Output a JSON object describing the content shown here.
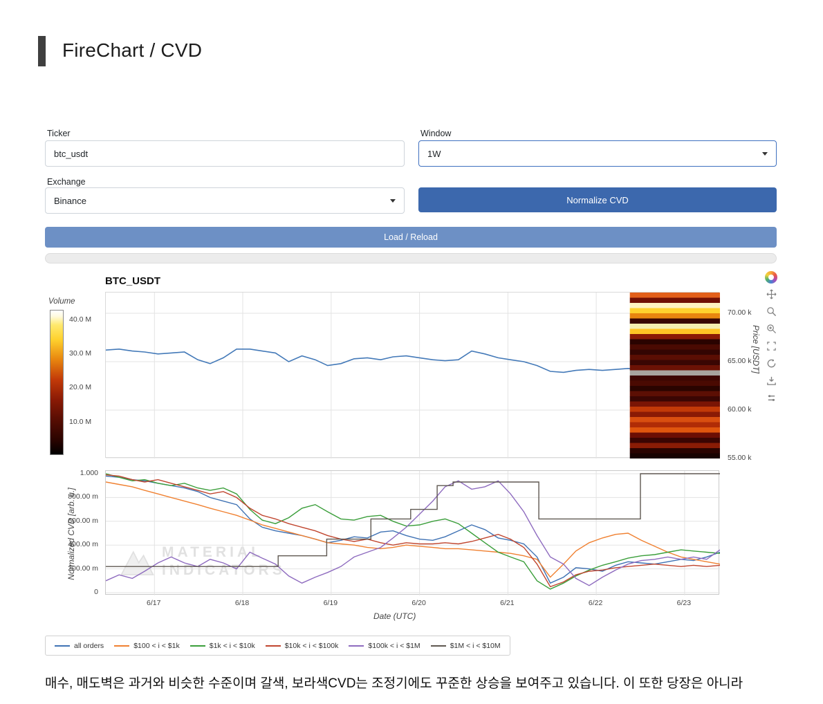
{
  "header": {
    "title": "FireChart / CVD"
  },
  "form": {
    "ticker_label": "Ticker",
    "ticker_value": "btc_usdt",
    "window_label": "Window",
    "window_value": "1W",
    "exchange_label": "Exchange",
    "exchange_value": "Binance",
    "normalize_button": "Normalize CVD",
    "load_button": "Load / Reload"
  },
  "chart": {
    "title": "BTC_USDT",
    "volume_label": "Volume",
    "volume_ticks": [
      {
        "label": "40.0 M",
        "pos": 6
      },
      {
        "label": "30.0 M",
        "pos": 29.5
      },
      {
        "label": "20.0 M",
        "pos": 53
      },
      {
        "label": "10.0 M",
        "pos": 76.5
      }
    ],
    "price_ylabel": "Price [USDT]",
    "price_ticks": [
      {
        "label": "70.00 k",
        "value": 70
      },
      {
        "label": "65.00 k",
        "value": 65
      },
      {
        "label": "60.00 k",
        "value": 60
      },
      {
        "label": "55.00 k",
        "value": 55
      }
    ],
    "cvd_ylabel": "Normalized CVD [arb. u.]",
    "cvd_ticks": [
      {
        "label": "1.000",
        "value": 1.0
      },
      {
        "label": "800.00 m",
        "value": 0.8
      },
      {
        "label": "600.00 m",
        "value": 0.6
      },
      {
        "label": "400.00 m",
        "value": 0.4
      },
      {
        "label": "200.00 m",
        "value": 0.2
      },
      {
        "label": "0",
        "value": 0
      }
    ],
    "date_label": "Date (UTC)",
    "date_ticks": [
      {
        "label": "6/17",
        "value": 17
      },
      {
        "label": "6/18",
        "value": 18
      },
      {
        "label": "6/19",
        "value": 19
      },
      {
        "label": "6/20",
        "value": 20
      },
      {
        "label": "6/21",
        "value": 21
      },
      {
        "label": "6/22",
        "value": 22
      },
      {
        "label": "6/23",
        "value": 23
      }
    ],
    "watermark_line1": "MATERIAL",
    "watermark_line2": "INDICATORS"
  },
  "modebar": {
    "icons": [
      {
        "name": "plotly-logo"
      },
      {
        "name": "pan-icon"
      },
      {
        "name": "zoom-icon"
      },
      {
        "name": "zoom-in-icon"
      },
      {
        "name": "autoscale-icon"
      },
      {
        "name": "reset-axes-icon"
      },
      {
        "name": "download-icon"
      },
      {
        "name": "hover-mode-icon"
      }
    ]
  },
  "chart_data": {
    "price_chart": {
      "type": "line",
      "title": "BTC_USDT",
      "x_domain": [
        16.45,
        23.4
      ],
      "y_domain_price_thousands": [
        55,
        72.14
      ],
      "x_gridlines": [
        17,
        18,
        19,
        20,
        21,
        22,
        23
      ],
      "y_gridlines": [
        55,
        60,
        65,
        70
      ],
      "price_series": {
        "name": "BTC_USDT price",
        "color": "#4379b8",
        "x": [
          16.45,
          16.6,
          16.75,
          16.89,
          17.04,
          17.19,
          17.34,
          17.49,
          17.63,
          17.78,
          17.93,
          18.08,
          18.22,
          18.37,
          18.52,
          18.67,
          18.82,
          18.96,
          19.11,
          19.26,
          19.41,
          19.56,
          19.7,
          19.85,
          20.0,
          20.15,
          20.29,
          20.44,
          20.59,
          20.74,
          20.89,
          21.03,
          21.18,
          21.33,
          21.48,
          21.63,
          21.77,
          21.92,
          22.07,
          22.22,
          22.36,
          22.51,
          22.66,
          22.81,
          22.96,
          23.1,
          23.25,
          23.4
        ],
        "y": [
          66.2,
          66.3,
          66.1,
          66.0,
          65.8,
          65.9,
          66.0,
          65.2,
          64.8,
          65.4,
          66.3,
          66.3,
          66.1,
          65.9,
          65.0,
          65.6,
          65.2,
          64.6,
          64.8,
          65.3,
          65.4,
          65.2,
          65.5,
          65.6,
          65.4,
          65.2,
          65.1,
          65.2,
          66.1,
          65.8,
          65.4,
          65.2,
          65.0,
          64.6,
          64.0,
          63.9,
          64.1,
          64.2,
          64.1,
          64.2,
          64.3,
          64.2,
          64.3,
          64.25,
          64.3,
          64.35,
          64.3,
          64.4
        ]
      },
      "heatmap": {
        "x_start": 22.38,
        "x_end": 23.4,
        "row_colors": [
          "#e2601a",
          "#701004",
          "#fff3c0",
          "#ffd22e",
          "#e8860f",
          "#380602",
          "#f4eeb0",
          "#ffc425",
          "#8a1a05",
          "#2a0300",
          "#4a0a02",
          "#330502",
          "#5a0e03",
          "#3a0603",
          "#6b1205",
          "#a8a5a0",
          "#3c0703",
          "#4a0a02",
          "#2a0400",
          "#5c0f04",
          "#3a0603",
          "#7a1505",
          "#c23a08",
          "#8a1a05",
          "#d94f10",
          "#b02c06",
          "#e0560e",
          "#6b0e04",
          "#3a0502",
          "#8a1c05",
          "#2a0300",
          "#180200"
        ]
      }
    },
    "cvd_chart": {
      "type": "line",
      "x_domain": [
        16.45,
        23.4
      ],
      "y_domain": [
        0,
        1.0
      ],
      "x": [
        16.45,
        16.6,
        16.75,
        16.89,
        17.04,
        17.19,
        17.34,
        17.49,
        17.63,
        17.78,
        17.93,
        18.08,
        18.22,
        18.37,
        18.52,
        18.67,
        18.82,
        18.96,
        19.11,
        19.26,
        19.41,
        19.56,
        19.7,
        19.85,
        20.0,
        20.15,
        20.29,
        20.44,
        20.59,
        20.74,
        20.89,
        21.03,
        21.18,
        21.33,
        21.48,
        21.63,
        21.77,
        21.92,
        22.07,
        22.22,
        22.36,
        22.51,
        22.66,
        22.81,
        22.96,
        23.1,
        23.25,
        23.4
      ],
      "series": [
        {
          "name": "all orders",
          "color": "#3f72b4",
          "y": [
            0.98,
            0.97,
            0.95,
            0.94,
            0.92,
            0.9,
            0.88,
            0.85,
            0.8,
            0.77,
            0.74,
            0.62,
            0.55,
            0.52,
            0.5,
            0.48,
            0.45,
            0.42,
            0.44,
            0.47,
            0.46,
            0.51,
            0.52,
            0.48,
            0.45,
            0.44,
            0.47,
            0.52,
            0.57,
            0.53,
            0.46,
            0.44,
            0.41,
            0.3,
            0.08,
            0.13,
            0.21,
            0.2,
            0.18,
            0.23,
            0.26,
            0.25,
            0.24,
            0.26,
            0.28,
            0.27,
            0.3,
            0.34
          ]
        },
        {
          "name": "$100 < i < $1k",
          "color": "#f08030",
          "y": [
            0.93,
            0.91,
            0.89,
            0.86,
            0.83,
            0.8,
            0.77,
            0.74,
            0.71,
            0.68,
            0.65,
            0.61,
            0.57,
            0.54,
            0.51,
            0.48,
            0.45,
            0.42,
            0.41,
            0.4,
            0.38,
            0.37,
            0.38,
            0.4,
            0.39,
            0.38,
            0.37,
            0.37,
            0.36,
            0.35,
            0.34,
            0.33,
            0.31,
            0.28,
            0.13,
            0.24,
            0.35,
            0.42,
            0.46,
            0.49,
            0.5,
            0.44,
            0.39,
            0.34,
            0.3,
            0.28,
            0.26,
            0.24
          ]
        },
        {
          "name": "$1k < i < $10k",
          "color": "#3a9e3a",
          "y": [
            1.0,
            0.97,
            0.94,
            0.95,
            0.92,
            0.9,
            0.92,
            0.88,
            0.86,
            0.88,
            0.83,
            0.7,
            0.61,
            0.58,
            0.63,
            0.71,
            0.74,
            0.68,
            0.62,
            0.61,
            0.64,
            0.65,
            0.6,
            0.56,
            0.57,
            0.6,
            0.62,
            0.58,
            0.5,
            0.42,
            0.34,
            0.3,
            0.26,
            0.1,
            0.03,
            0.08,
            0.14,
            0.19,
            0.23,
            0.26,
            0.29,
            0.31,
            0.32,
            0.34,
            0.36,
            0.35,
            0.34,
            0.33
          ]
        },
        {
          "name": "$10k < i < $100k",
          "color": "#c0452e",
          "y": [
            0.99,
            0.98,
            0.95,
            0.93,
            0.95,
            0.92,
            0.89,
            0.86,
            0.83,
            0.85,
            0.8,
            0.71,
            0.65,
            0.62,
            0.58,
            0.55,
            0.52,
            0.48,
            0.45,
            0.43,
            0.45,
            0.42,
            0.4,
            0.42,
            0.41,
            0.41,
            0.42,
            0.41,
            0.43,
            0.46,
            0.49,
            0.45,
            0.38,
            0.24,
            0.05,
            0.09,
            0.15,
            0.18,
            0.19,
            0.21,
            0.22,
            0.23,
            0.24,
            0.23,
            0.22,
            0.23,
            0.22,
            0.23
          ]
        },
        {
          "name": "$100k < i < $1M",
          "color": "#8e6bbf",
          "y": [
            0.1,
            0.15,
            0.12,
            0.18,
            0.25,
            0.3,
            0.25,
            0.22,
            0.28,
            0.25,
            0.2,
            0.34,
            0.29,
            0.24,
            0.14,
            0.08,
            0.13,
            0.17,
            0.22,
            0.3,
            0.34,
            0.38,
            0.46,
            0.55,
            0.66,
            0.77,
            0.89,
            0.94,
            0.87,
            0.89,
            0.94,
            0.83,
            0.68,
            0.48,
            0.3,
            0.24,
            0.12,
            0.06,
            0.13,
            0.19,
            0.24,
            0.27,
            0.28,
            0.3,
            0.28,
            0.3,
            0.28,
            0.36
          ]
        },
        {
          "name": "$1M < i < $10M",
          "color": "#5e5750",
          "step": true,
          "x": [
            16.45,
            18.4,
            18.4,
            18.95,
            18.95,
            19.45,
            19.45,
            19.9,
            19.9,
            20.2,
            20.2,
            20.38,
            20.38,
            21.35,
            21.35,
            22.5,
            22.5,
            23.4
          ],
          "y": [
            0.22,
            0.22,
            0.31,
            0.31,
            0.45,
            0.45,
            0.62,
            0.62,
            0.7,
            0.7,
            0.9,
            0.9,
            0.93,
            0.93,
            0.62,
            0.62,
            1.0,
            1.0
          ]
        }
      ]
    }
  },
  "footer": {
    "text": "매수, 매도벽은 과거와 비슷한 수준이며 갈색, 보라색CVD는 조정기에도 꾸준한 상승을 보여주고 있습니다. 이 또한 당장은 아니라"
  }
}
